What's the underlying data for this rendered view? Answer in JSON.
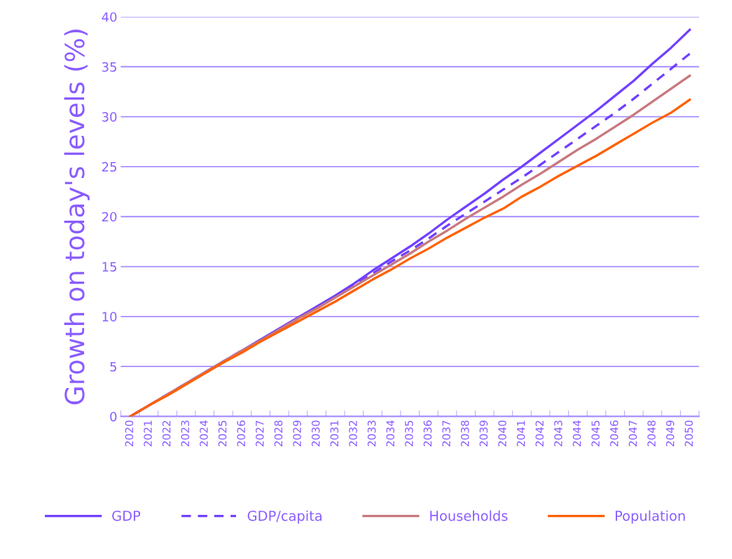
{
  "chart_data": {
    "type": "line",
    "ylabel": "Growth on today's levels (%)",
    "categories": [
      "2020",
      "2021",
      "2022",
      "2023",
      "2024",
      "2025",
      "2026",
      "2027",
      "2028",
      "2029",
      "2030",
      "2031",
      "2032",
      "2033",
      "2034",
      "2035",
      "2036",
      "2037",
      "2038",
      "2039",
      "2040",
      "2041",
      "2042",
      "2043",
      "2044",
      "2045",
      "2046",
      "2047",
      "2048",
      "2049",
      "2050"
    ],
    "series": [
      {
        "name": "GDP",
        "color": "#7040ff",
        "line_style": "solid",
        "values": [
          0,
          1.1,
          2.2,
          3.3,
          4.4,
          5.5,
          6.6,
          7.7,
          8.8,
          9.9,
          11.0,
          12.1,
          13.3,
          14.6,
          15.8,
          17.0,
          18.3,
          19.7,
          21.0,
          22.3,
          23.7,
          25.0,
          26.4,
          27.8,
          29.2,
          30.6,
          32.1,
          33.6,
          35.3,
          36.9,
          38.7
        ]
      },
      {
        "name": "GDP/capita",
        "color": "#7040ff",
        "line_style": "dashed",
        "values": [
          0,
          1.1,
          2.2,
          3.3,
          4.4,
          5.5,
          6.6,
          7.6,
          8.7,
          9.8,
          10.9,
          12.0,
          13.1,
          14.3,
          15.5,
          16.6,
          17.8,
          19.1,
          20.3,
          21.5,
          22.7,
          23.9,
          25.2,
          26.5,
          27.8,
          29.1,
          30.4,
          31.8,
          33.3,
          34.8,
          36.3
        ]
      },
      {
        "name": "Households",
        "color": "#c8787e",
        "line_style": "solid",
        "values": [
          0,
          1.1,
          2.2,
          3.3,
          4.4,
          5.5,
          6.6,
          7.6,
          8.7,
          9.8,
          10.8,
          11.9,
          13.0,
          14.1,
          15.2,
          16.3,
          17.5,
          18.6,
          19.8,
          20.9,
          22.0,
          23.2,
          24.3,
          25.5,
          26.7,
          27.8,
          29.0,
          30.2,
          31.5,
          32.8,
          34.1
        ]
      },
      {
        "name": "Population",
        "color": "#ff6000",
        "line_style": "solid",
        "values": [
          0,
          1.1,
          2.1,
          3.2,
          4.3,
          5.4,
          6.4,
          7.5,
          8.5,
          9.5,
          10.5,
          11.5,
          12.6,
          13.7,
          14.7,
          15.8,
          16.8,
          17.9,
          18.9,
          19.9,
          20.8,
          22.0,
          23.0,
          24.1,
          25.1,
          26.1,
          27.2,
          28.3,
          29.4,
          30.4,
          31.7
        ]
      }
    ],
    "ylim": [
      0,
      40
    ],
    "yticks": [
      0,
      5,
      10,
      15,
      20,
      25,
      30,
      35,
      40
    ],
    "grid": "y",
    "legend": "bottom",
    "marker": "none"
  }
}
